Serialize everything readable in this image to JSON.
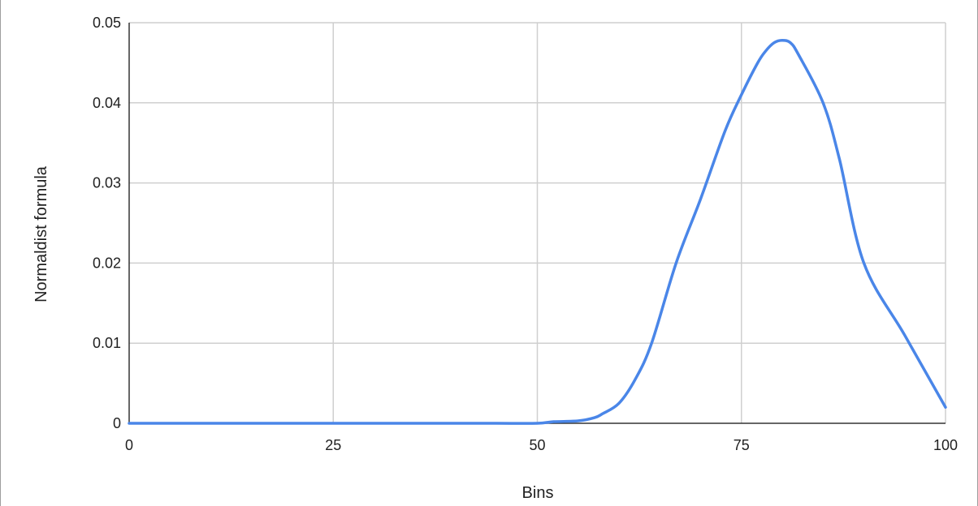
{
  "chart_data": {
    "type": "line",
    "title": "",
    "xlabel": "Bins",
    "ylabel": "Normaldist formula",
    "xlim": [
      0,
      100
    ],
    "ylim": [
      0,
      0.05
    ],
    "x_ticks": [
      "0",
      "25",
      "50",
      "75",
      "100"
    ],
    "y_ticks": [
      "0",
      "0.01",
      "0.02",
      "0.03",
      "0.04",
      "0.05"
    ],
    "grid": true,
    "series": [
      {
        "name": "Normaldist formula",
        "color": "#4a86e8",
        "x": [
          0,
          10,
          20,
          30,
          40,
          45,
          50,
          52,
          55,
          57,
          58,
          60,
          62,
          64,
          67,
          70,
          73,
          75,
          77,
          78,
          79,
          80,
          81,
          82,
          85,
          87,
          90,
          95,
          100
        ],
        "y": [
          0.0,
          0.0,
          0.0,
          0.0,
          0.0,
          0.0,
          0.0,
          0.0002,
          0.0003,
          0.0007,
          0.0012,
          0.0025,
          0.0055,
          0.01,
          0.02,
          0.028,
          0.0365,
          0.041,
          0.045,
          0.0465,
          0.0475,
          0.0478,
          0.0475,
          0.046,
          0.04,
          0.033,
          0.02,
          0.011,
          0.002
        ]
      }
    ]
  }
}
